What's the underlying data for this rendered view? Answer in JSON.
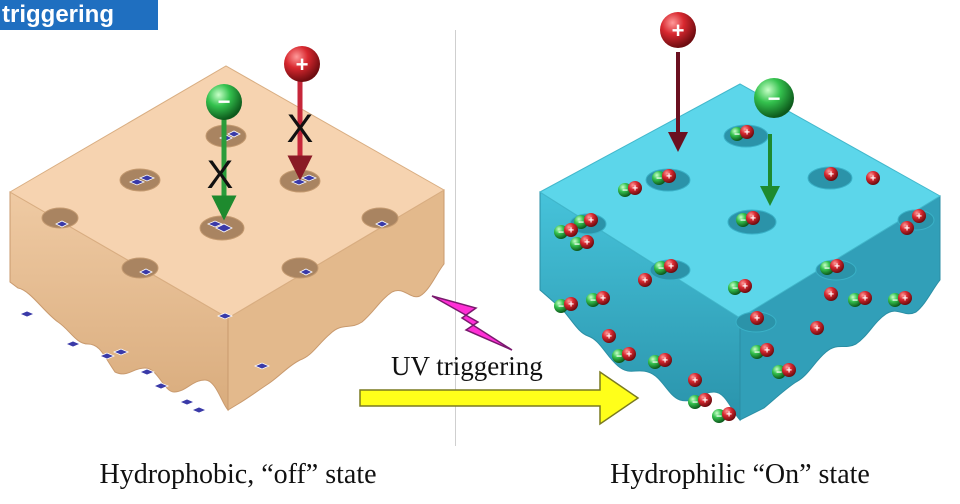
{
  "header": {
    "tag": "triggering"
  },
  "diagram": {
    "left_caption": "Hydrophobic, “off” state",
    "right_caption": "Hydrophilic “On” state",
    "trigger_label": "UV triggering",
    "plus_symbol": "+",
    "minus_symbol": "−",
    "block_mark": "X",
    "colors": {
      "hydrophobic_top": "#f6d3b0",
      "hydrophobic_side": "#e6bb90",
      "hydrophilic_top": "#5cd6ea",
      "hydrophilic_side": "#39aec6",
      "cation": "#c8222c",
      "anion": "#2cb24a",
      "lightning": "#ff2fd6",
      "arrow": "#ffff1a",
      "title_bg": "#1f6fc0"
    }
  }
}
